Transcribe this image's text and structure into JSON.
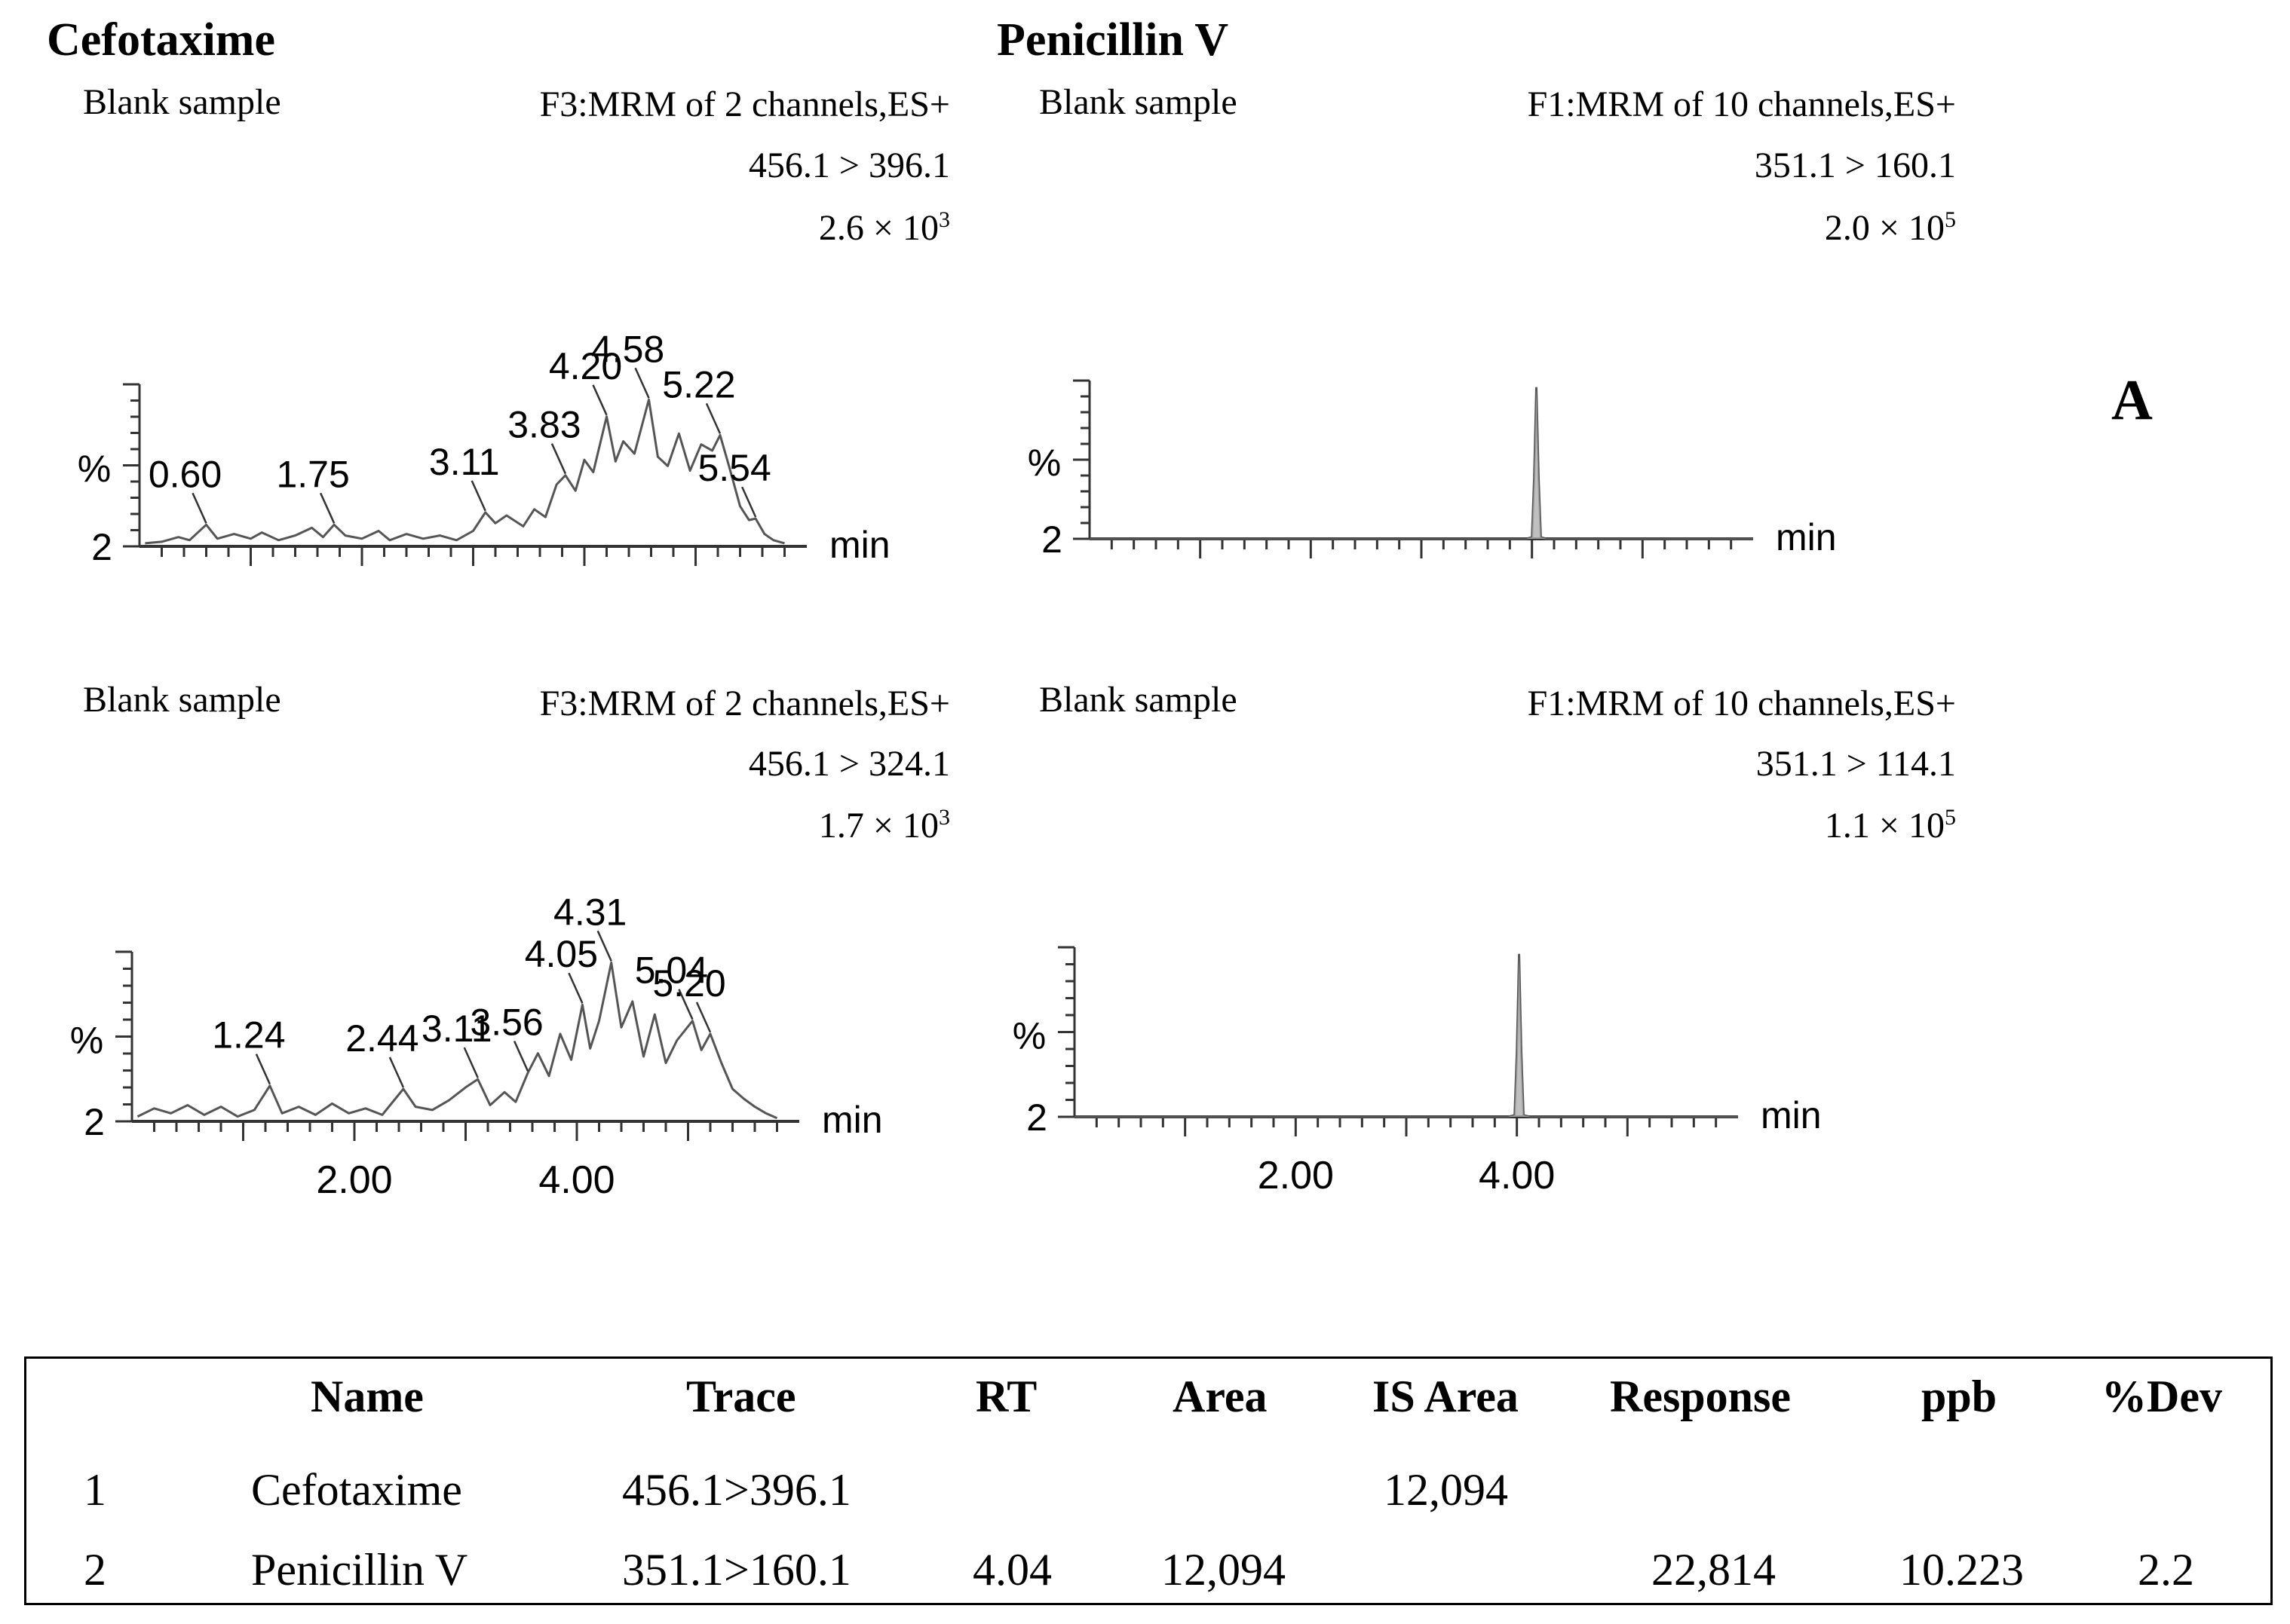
{
  "sections": {
    "left_title": "Cefotaxime",
    "right_title": "Penicillin V",
    "panel_letter": "A"
  },
  "chart_data": [
    {
      "type": "line",
      "compound": "Cefotaxime",
      "sample_label": "Blank sample",
      "function": "F3:MRM of 2 channels,ES+",
      "transition": "456.1 > 396.1",
      "intensity_base": "2.6 × 10",
      "intensity_exp": "3",
      "ylabel": "%",
      "y_min_label": "2",
      "xlabel": "min",
      "xlim": [
        0,
        6
      ],
      "x_ticks": [],
      "peak_labels": [
        {
          "rt": 0.6,
          "label": "0.60"
        },
        {
          "rt": 1.75,
          "label": "1.75"
        },
        {
          "rt": 3.11,
          "label": "3.11"
        },
        {
          "rt": 3.83,
          "label": "3.83"
        },
        {
          "rt": 4.2,
          "label": "4.20"
        },
        {
          "rt": 4.58,
          "label": "4.58"
        },
        {
          "rt": 5.22,
          "label": "5.22"
        },
        {
          "rt": 5.54,
          "label": "5.54"
        }
      ],
      "trace": [
        [
          0.05,
          2
        ],
        [
          0.2,
          3
        ],
        [
          0.35,
          6
        ],
        [
          0.45,
          4
        ],
        [
          0.6,
          14
        ],
        [
          0.7,
          5
        ],
        [
          0.85,
          8
        ],
        [
          1.0,
          5
        ],
        [
          1.1,
          9
        ],
        [
          1.25,
          4
        ],
        [
          1.4,
          7
        ],
        [
          1.55,
          12
        ],
        [
          1.65,
          6
        ],
        [
          1.75,
          14
        ],
        [
          1.85,
          7
        ],
        [
          2.0,
          5
        ],
        [
          2.15,
          10
        ],
        [
          2.25,
          4
        ],
        [
          2.4,
          8
        ],
        [
          2.55,
          5
        ],
        [
          2.7,
          7
        ],
        [
          2.85,
          4
        ],
        [
          3.0,
          10
        ],
        [
          3.11,
          22
        ],
        [
          3.2,
          15
        ],
        [
          3.3,
          20
        ],
        [
          3.45,
          13
        ],
        [
          3.55,
          24
        ],
        [
          3.65,
          19
        ],
        [
          3.75,
          40
        ],
        [
          3.83,
          46
        ],
        [
          3.92,
          36
        ],
        [
          4.0,
          56
        ],
        [
          4.08,
          48
        ],
        [
          4.2,
          84
        ],
        [
          4.28,
          55
        ],
        [
          4.35,
          68
        ],
        [
          4.45,
          60
        ],
        [
          4.58,
          95
        ],
        [
          4.66,
          58
        ],
        [
          4.75,
          52
        ],
        [
          4.85,
          73
        ],
        [
          4.95,
          49
        ],
        [
          5.05,
          66
        ],
        [
          5.15,
          62
        ],
        [
          5.22,
          72
        ],
        [
          5.3,
          52
        ],
        [
          5.4,
          26
        ],
        [
          5.48,
          17
        ],
        [
          5.54,
          18
        ],
        [
          5.62,
          8
        ],
        [
          5.7,
          4
        ],
        [
          5.8,
          2
        ]
      ]
    },
    {
      "type": "line",
      "compound": "Penicillin V",
      "sample_label": "Blank sample",
      "function": "F1:MRM of 10 channels,ES+",
      "transition": "351.1 > 160.1",
      "intensity_base": "2.0 × 10",
      "intensity_exp": "5",
      "ylabel": "%",
      "y_min_label": "2",
      "xlabel": "min",
      "xlim": [
        0,
        6
      ],
      "x_ticks": [],
      "peak_labels": [],
      "trace": [
        [
          0.0,
          0
        ],
        [
          3.95,
          0
        ],
        [
          4.0,
          1
        ],
        [
          4.02,
          40
        ],
        [
          4.04,
          100
        ],
        [
          4.06,
          40
        ],
        [
          4.08,
          1
        ],
        [
          4.13,
          0
        ],
        [
          6.0,
          0
        ]
      ]
    },
    {
      "type": "line",
      "compound": "Cefotaxime",
      "sample_label": "Blank sample",
      "function": "F3:MRM of 2 channels,ES+",
      "transition": "456.1 > 324.1",
      "intensity_base": "1.7 × 10",
      "intensity_exp": "3",
      "ylabel": "%",
      "y_min_label": "2",
      "xlabel": "min",
      "xlim": [
        0,
        6
      ],
      "x_ticks": [
        "2.00",
        "4.00"
      ],
      "peak_labels": [
        {
          "rt": 1.24,
          "label": "1.24"
        },
        {
          "rt": 2.44,
          "label": "2.44"
        },
        {
          "rt": 3.11,
          "label": "3.11"
        },
        {
          "rt": 3.56,
          "label": "3.56"
        },
        {
          "rt": 4.05,
          "label": "4.05"
        },
        {
          "rt": 4.31,
          "label": "4.31"
        },
        {
          "rt": 5.04,
          "label": "5.04"
        },
        {
          "rt": 5.2,
          "label": "5.20"
        }
      ],
      "trace": [
        [
          0.05,
          3
        ],
        [
          0.2,
          8
        ],
        [
          0.35,
          5
        ],
        [
          0.5,
          10
        ],
        [
          0.65,
          4
        ],
        [
          0.8,
          9
        ],
        [
          0.95,
          3
        ],
        [
          1.1,
          7
        ],
        [
          1.24,
          22
        ],
        [
          1.35,
          5
        ],
        [
          1.5,
          9
        ],
        [
          1.65,
          4
        ],
        [
          1.8,
          11
        ],
        [
          1.95,
          5
        ],
        [
          2.1,
          8
        ],
        [
          2.25,
          4
        ],
        [
          2.44,
          20
        ],
        [
          2.55,
          9
        ],
        [
          2.7,
          7
        ],
        [
          2.85,
          13
        ],
        [
          3.0,
          21
        ],
        [
          3.11,
          26
        ],
        [
          3.22,
          10
        ],
        [
          3.35,
          18
        ],
        [
          3.45,
          12
        ],
        [
          3.56,
          30
        ],
        [
          3.65,
          42
        ],
        [
          3.75,
          28
        ],
        [
          3.85,
          54
        ],
        [
          3.95,
          38
        ],
        [
          4.05,
          72
        ],
        [
          4.12,
          45
        ],
        [
          4.2,
          62
        ],
        [
          4.31,
          98
        ],
        [
          4.4,
          58
        ],
        [
          4.5,
          74
        ],
        [
          4.6,
          40
        ],
        [
          4.7,
          66
        ],
        [
          4.8,
          36
        ],
        [
          4.9,
          50
        ],
        [
          5.04,
          62
        ],
        [
          5.12,
          44
        ],
        [
          5.2,
          54
        ],
        [
          5.3,
          36
        ],
        [
          5.4,
          20
        ],
        [
          5.5,
          14
        ],
        [
          5.6,
          9
        ],
        [
          5.7,
          5
        ],
        [
          5.8,
          2
        ]
      ]
    },
    {
      "type": "line",
      "compound": "Penicillin V",
      "sample_label": "Blank sample",
      "function": "F1:MRM of 10 channels,ES+",
      "transition": "351.1 > 114.1",
      "intensity_base": "1.1 × 10",
      "intensity_exp": "5",
      "ylabel": "%",
      "y_min_label": "2",
      "xlabel": "min",
      "xlim": [
        0,
        6
      ],
      "x_ticks": [
        "2.00",
        "4.00"
      ],
      "peak_labels": [],
      "trace": [
        [
          0.0,
          0
        ],
        [
          3.92,
          0
        ],
        [
          3.98,
          1
        ],
        [
          4.0,
          40
        ],
        [
          4.02,
          100
        ],
        [
          4.04,
          40
        ],
        [
          4.06,
          1
        ],
        [
          4.12,
          0
        ],
        [
          6.0,
          0
        ]
      ]
    }
  ],
  "table": {
    "headers": [
      "",
      "Name",
      "Trace",
      "RT",
      "Area",
      "IS Area",
      "Response",
      "ppb",
      "%Dev"
    ],
    "rows": [
      [
        "1",
        "Cefotaxime",
        "456.1>396.1",
        "",
        "",
        "12,094",
        "",
        "",
        ""
      ],
      [
        "2",
        "Penicillin V",
        "351.1>160.1",
        "4.04",
        "12,094",
        "",
        "22,814",
        "10.223",
        "2.2"
      ]
    ]
  }
}
